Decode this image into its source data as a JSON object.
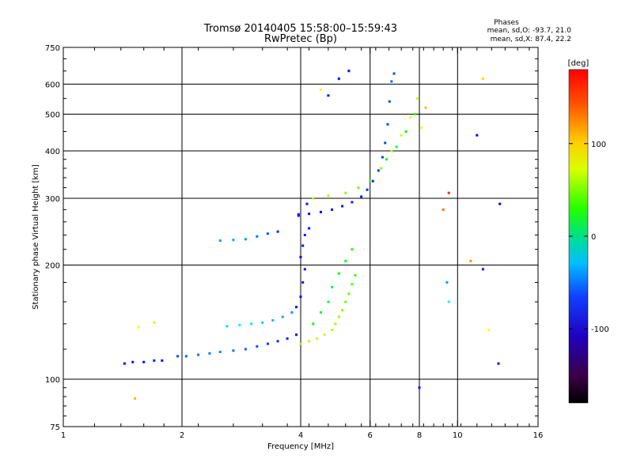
{
  "chart_data": {
    "type": "scatter",
    "title": "Tromsø 20140405 15:58:00–15:59:43",
    "subtitle": "RwPretec (Bp)",
    "xlabel": "Frequency [MHz]",
    "ylabel": "Stationary phase Virtual Height [km]",
    "x_scale": "log",
    "y_scale": "log",
    "xlim": [
      1,
      16
    ],
    "ylim": [
      75,
      750
    ],
    "x_ticks": [
      1,
      2,
      4,
      6,
      8,
      10,
      16
    ],
    "x_tick_labels": [
      "1",
      "2",
      "4",
      "6",
      "8",
      "10",
      "16"
    ],
    "y_ticks": [
      75,
      100,
      200,
      300,
      400,
      500,
      600,
      750
    ],
    "y_tick_labels": [
      "75",
      "100",
      "200",
      "300",
      "400",
      "500",
      "600",
      "750"
    ],
    "grid": true,
    "stats": {
      "title": "Phases",
      "line_o": "mean, sd,O: -93.7, 21.0",
      "line_x": "mean, sd,X:  87.4, 22.2"
    },
    "colorbar": {
      "label": "[deg]",
      "range": [
        -180,
        180
      ],
      "ticks": [
        -100,
        0,
        100
      ],
      "tick_labels": [
        "-100",
        "0",
        "100"
      ],
      "colormap": "rainbow"
    },
    "points": [
      [
        1.43,
        110,
        -105
      ],
      [
        1.5,
        111,
        -100
      ],
      [
        1.6,
        111,
        -102
      ],
      [
        1.7,
        112,
        -98
      ],
      [
        1.78,
        112,
        -100
      ],
      [
        1.52,
        89,
        130
      ],
      [
        1.55,
        137,
        110
      ],
      [
        1.7,
        141,
        100
      ],
      [
        1.95,
        115,
        -80
      ],
      [
        2.05,
        115,
        -75
      ],
      [
        2.2,
        116,
        -70
      ],
      [
        2.35,
        117,
        -68
      ],
      [
        2.5,
        118,
        -65
      ],
      [
        2.7,
        119,
        -70
      ],
      [
        2.9,
        120,
        -75
      ],
      [
        3.1,
        122,
        -80
      ],
      [
        3.3,
        124,
        -85
      ],
      [
        3.5,
        126,
        -90
      ],
      [
        3.7,
        128,
        -95
      ],
      [
        3.9,
        131,
        -100
      ],
      [
        2.6,
        138,
        -40
      ],
      [
        2.8,
        139,
        -35
      ],
      [
        3.0,
        140,
        -40
      ],
      [
        3.2,
        141,
        -45
      ],
      [
        3.4,
        143,
        -50
      ],
      [
        3.6,
        146,
        -55
      ],
      [
        3.8,
        150,
        -60
      ],
      [
        4.0,
        124,
        85
      ],
      [
        4.2,
        126,
        90
      ],
      [
        4.4,
        128,
        92
      ],
      [
        4.6,
        131,
        95
      ],
      [
        4.8,
        135,
        90
      ],
      [
        4.9,
        140,
        85
      ],
      [
        5.0,
        146,
        80
      ],
      [
        5.1,
        152,
        75
      ],
      [
        5.2,
        160,
        70
      ],
      [
        5.3,
        168,
        65
      ],
      [
        5.4,
        178,
        60
      ],
      [
        5.5,
        188,
        55
      ],
      [
        4.3,
        140,
        40
      ],
      [
        4.5,
        150,
        30
      ],
      [
        4.7,
        160,
        20
      ],
      [
        4.8,
        175,
        15
      ],
      [
        5.0,
        190,
        25
      ],
      [
        5.2,
        205,
        35
      ],
      [
        5.4,
        220,
        50
      ],
      [
        3.9,
        155,
        -100
      ],
      [
        4.0,
        165,
        -105
      ],
      [
        4.05,
        180,
        -95
      ],
      [
        4.1,
        195,
        -100
      ],
      [
        4.0,
        210,
        -105
      ],
      [
        4.05,
        225,
        -100
      ],
      [
        4.1,
        240,
        -95
      ],
      [
        4.2,
        250,
        -100
      ],
      [
        3.95,
        270,
        -105
      ],
      [
        4.15,
        290,
        -100
      ],
      [
        2.5,
        232,
        -60
      ],
      [
        2.7,
        233,
        -55
      ],
      [
        2.9,
        234,
        -60
      ],
      [
        3.1,
        238,
        -70
      ],
      [
        3.3,
        242,
        -80
      ],
      [
        3.5,
        245,
        -90
      ],
      [
        3.95,
        272,
        -105
      ],
      [
        4.2,
        273,
        -110
      ],
      [
        4.5,
        276,
        -108
      ],
      [
        4.8,
        280,
        -105
      ],
      [
        5.1,
        286,
        -100
      ],
      [
        5.4,
        293,
        -98
      ],
      [
        5.7,
        303,
        -95
      ],
      [
        5.9,
        316,
        -92
      ],
      [
        6.1,
        333,
        -90
      ],
      [
        6.3,
        355,
        -88
      ],
      [
        6.45,
        385,
        -85
      ],
      [
        6.55,
        420,
        -82
      ],
      [
        6.65,
        470,
        -80
      ],
      [
        6.72,
        540,
        -78
      ],
      [
        6.8,
        610,
        -75
      ],
      [
        6.9,
        640,
        -80
      ],
      [
        4.3,
        300,
        90
      ],
      [
        4.7,
        305,
        85
      ],
      [
        5.2,
        310,
        80
      ],
      [
        5.6,
        320,
        70
      ],
      [
        6.0,
        335,
        60
      ],
      [
        6.4,
        360,
        75
      ],
      [
        6.8,
        400,
        90
      ],
      [
        7.2,
        440,
        95
      ],
      [
        7.6,
        490,
        100
      ],
      [
        7.9,
        550,
        95
      ],
      [
        6.6,
        380,
        30
      ],
      [
        7.0,
        410,
        20
      ],
      [
        7.4,
        450,
        40
      ],
      [
        7.8,
        500,
        55
      ],
      [
        8.1,
        460,
        110
      ],
      [
        8.3,
        520,
        130
      ],
      [
        4.5,
        580,
        110
      ],
      [
        4.7,
        560,
        -100
      ],
      [
        5.3,
        650,
        -110
      ],
      [
        5.0,
        620,
        -110
      ],
      [
        9.2,
        280,
        150
      ],
      [
        9.5,
        310,
        170
      ],
      [
        10.8,
        205,
        140
      ],
      [
        11.6,
        195,
        -120
      ],
      [
        12.0,
        135,
        110
      ],
      [
        12.7,
        110,
        -110
      ],
      [
        11.2,
        440,
        -110
      ],
      [
        11.6,
        620,
        120
      ],
      [
        12.8,
        290,
        -110
      ],
      [
        9.5,
        160,
        -30
      ],
      [
        9.4,
        180,
        -60
      ],
      [
        8.0,
        95,
        -120
      ]
    ]
  }
}
